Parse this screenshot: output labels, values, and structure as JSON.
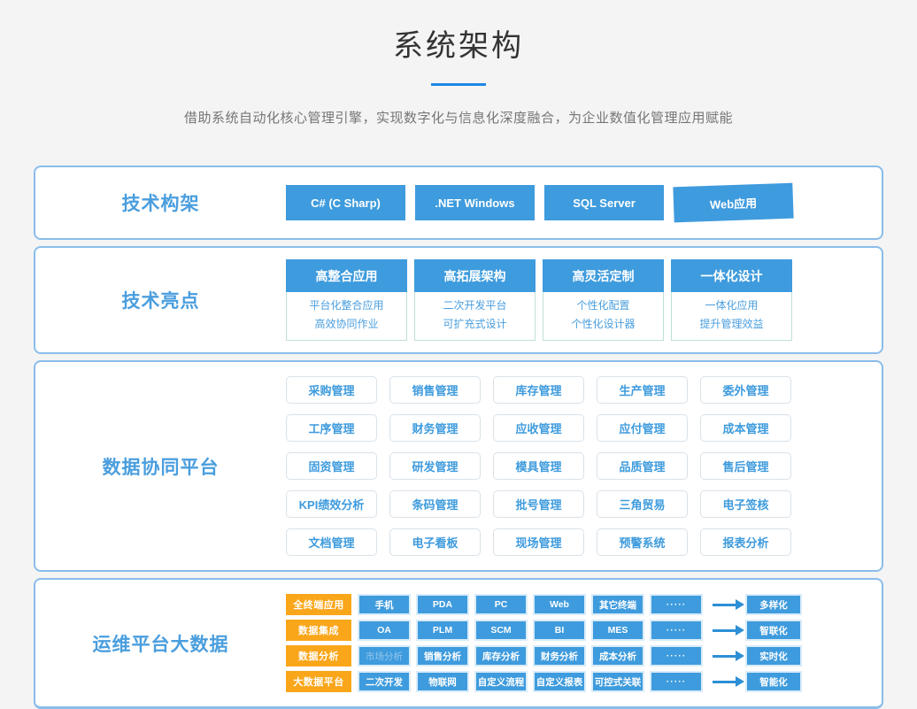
{
  "page": {
    "title": "系统架构",
    "subtitle": "借助系统自动化核心管理引擎，实现数字化与信息化深度融合，为企业数值化管理应用赋能"
  },
  "colors": {
    "accent_blue": "#3e9bdd",
    "accent_orange": "#faa61a",
    "label_blue": "#4a9ede",
    "box_border": "#8abdea",
    "title_underline": "#1e88e5"
  },
  "tech_stack": {
    "label": "技术构架",
    "buttons": [
      "C#  (C Sharp)",
      ".NET Windows",
      "SQL Server",
      "Web应用"
    ]
  },
  "highlights": {
    "label": "技术亮点",
    "cards": [
      {
        "title": "高整合应用",
        "lines": [
          "平台化整合应用",
          "高效协同作业"
        ]
      },
      {
        "title": "高拓展架构",
        "lines": [
          "二次开发平台",
          "可扩充式设计"
        ]
      },
      {
        "title": "高灵活定制",
        "lines": [
          "个性化配置",
          "个性化设计器"
        ]
      },
      {
        "title": "一体化设计",
        "lines": [
          "一体化应用",
          "提升管理效益"
        ]
      }
    ]
  },
  "platform": {
    "label": "数据协同平台",
    "modules": [
      "采购管理",
      "销售管理",
      "库存管理",
      "生产管理",
      "委外管理",
      "工序管理",
      "财务管理",
      "应收管理",
      "应付管理",
      "成本管理",
      "固资管理",
      "研发管理",
      "模具管理",
      "品质管理",
      "售后管理",
      "KPI绩效分析",
      "条码管理",
      "批号管理",
      "三角贸易",
      "电子签核",
      "文档管理",
      "电子看板",
      "现场管理",
      "预警系统",
      "报表分析"
    ]
  },
  "bigdata": {
    "label": "运维平台大数据",
    "rows": [
      {
        "category": "全终端应用",
        "items": [
          "手机",
          "PDA",
          "PC",
          "Web",
          "其它终端",
          "·····"
        ],
        "result": "多样化"
      },
      {
        "category": "数据集成",
        "items": [
          "OA",
          "PLM",
          "SCM",
          "BI",
          "MES",
          "·····"
        ],
        "result": "智联化"
      },
      {
        "category": "数据分析",
        "items": [
          "市场分析",
          "销售分析",
          "库存分析",
          "财务分析",
          "成本分析",
          "·····"
        ],
        "result": "实时化"
      },
      {
        "category": "大数据平台",
        "items": [
          "二次开发",
          "物联网",
          "自定义流程",
          "自定义报表",
          "可控式关联",
          "·····"
        ],
        "result": "智能化"
      }
    ]
  }
}
